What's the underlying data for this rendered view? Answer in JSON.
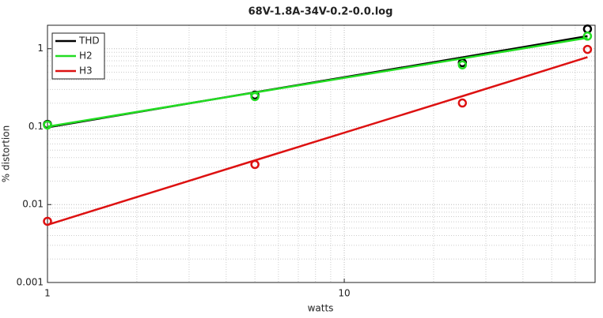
{
  "chart_data": {
    "type": "loglog",
    "title": "68V-1.8A-34V-0.2-0.0.log",
    "x_label": "watts",
    "y_label": "% distortion",
    "x": [
      1,
      5,
      25,
      66
    ],
    "xlim": [
      1,
      70
    ],
    "ylim": [
      0.001,
      2
    ],
    "xticks": [
      1,
      10
    ],
    "yticks": [
      0.001,
      0.01,
      0.1,
      1
    ],
    "log_x": true,
    "log_y": true,
    "grid": true,
    "legend": "upper-left",
    "series": [
      {
        "name": "THD",
        "color": "#000000",
        "values": [
          0.107,
          0.254,
          0.662,
          1.79
        ],
        "fit": [
          0.098,
          0.276,
          0.774,
          1.45
        ]
      },
      {
        "name": "H2",
        "color": "#22dd22",
        "values": [
          0.105,
          0.243,
          0.62,
          1.45
        ],
        "fit": [
          0.1,
          0.274,
          0.75,
          1.38
        ]
      },
      {
        "name": "H3",
        "color": "#dd1111",
        "values": [
          0.0061,
          0.0327,
          0.201,
          0.98
        ],
        "fit": [
          0.0055,
          0.0369,
          0.246,
          0.78
        ]
      }
    ]
  }
}
